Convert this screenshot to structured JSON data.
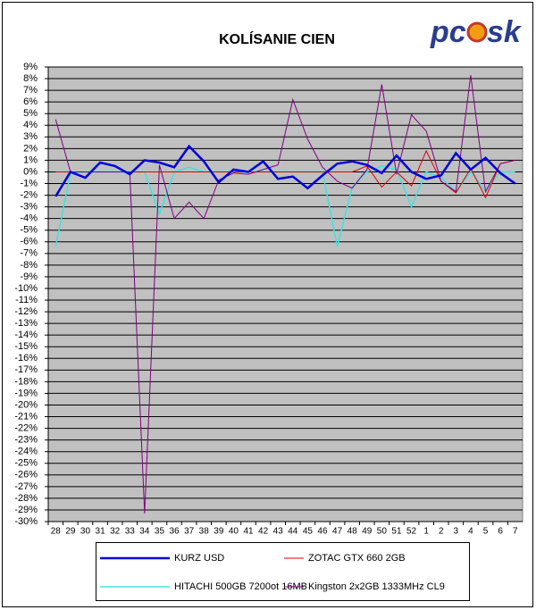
{
  "chart_data": {
    "type": "line",
    "title": "KOLÍSANIE CIEN",
    "logo": [
      "pc",
      "sk"
    ],
    "categories": [
      "28",
      "29",
      "30",
      "31",
      "32",
      "33",
      "34",
      "35",
      "36",
      "37",
      "38",
      "39",
      "40",
      "41",
      "42",
      "43",
      "44",
      "45",
      "46",
      "47",
      "48",
      "49",
      "50",
      "51",
      "52",
      "1",
      "2",
      "3",
      "4",
      "5",
      "6",
      "7"
    ],
    "series": [
      {
        "name": "KURZ USD",
        "color": "#0000dd",
        "values": [
          -2.1,
          0,
          -0.5,
          0.8,
          0.5,
          -0.2,
          1.0,
          0.8,
          0.4,
          2.2,
          0.9,
          -0.9,
          0.2,
          0,
          0.9,
          -0.6,
          -0.4,
          -1.4,
          -0.3,
          0.7,
          0.9,
          0.6,
          -0.1,
          1.4,
          0,
          -0.6,
          -0.3,
          1.6,
          0.2,
          1.2,
          -0.1,
          -1.0
        ]
      },
      {
        "name": "ZOTAC GTX 660 2GB",
        "color": "#e00000",
        "values": [
          0,
          0,
          0,
          0,
          0,
          0,
          0,
          0,
          0,
          0,
          0,
          0,
          0,
          0,
          0,
          0,
          0,
          0,
          0,
          0,
          0,
          0.5,
          -1.3,
          0,
          -1.2,
          1.8,
          -0.8,
          -1.8,
          0.3,
          -2.2,
          0.7,
          1.0
        ]
      },
      {
        "name": "HITACHI 500GB 7200ot 16MB",
        "color": "#40e0e0",
        "values": [
          -6.4,
          -0.1,
          0,
          0,
          0,
          0,
          0,
          -3.6,
          0,
          0.4,
          0,
          0,
          0,
          0,
          0,
          0,
          0,
          0,
          0,
          -6.4,
          -1.3,
          0,
          0.5,
          0.2,
          -3.0,
          0,
          -0.5,
          -1.7,
          0,
          -1.6,
          0,
          0
        ]
      },
      {
        "name": "Kingston 2x2GB 1333MHz CL9",
        "color": "#800080",
        "values": [
          4.5,
          0,
          0,
          0,
          0,
          0,
          -29.3,
          0.6,
          -4.0,
          -2.6,
          -4.0,
          -0.7,
          -0.1,
          -0.2,
          0.2,
          0.6,
          6.2,
          2.8,
          0.4,
          -0.8,
          -1.4,
          0.2,
          7.5,
          -0.2,
          4.9,
          3.5,
          -0.8,
          -1.7,
          8.3,
          -1.7,
          0.7,
          1.0
        ]
      }
    ],
    "ylim": [
      -30,
      9
    ],
    "yticks": [
      {
        "value": 9,
        "label": "9%"
      },
      {
        "value": 8,
        "label": "8%"
      },
      {
        "value": 7,
        "label": "7%"
      },
      {
        "value": 6,
        "label": "6%"
      },
      {
        "value": 5,
        "label": "5%"
      },
      {
        "value": 4,
        "label": "4%"
      },
      {
        "value": 3,
        "label": "3%"
      },
      {
        "value": 2,
        "label": "2%"
      },
      {
        "value": 1,
        "label": "1%"
      },
      {
        "value": 0,
        "label": "0%"
      },
      {
        "value": -1,
        "label": "-1%"
      },
      {
        "value": -2,
        "label": "-2%"
      },
      {
        "value": -3,
        "label": "-3%"
      },
      {
        "value": -4,
        "label": "-4%"
      },
      {
        "value": -5,
        "label": "-5%"
      },
      {
        "value": -6,
        "label": "-6%"
      },
      {
        "value": -7,
        "label": "-7%"
      },
      {
        "value": -8,
        "label": "-8%"
      },
      {
        "value": -9,
        "label": "-9%"
      },
      {
        "value": -10,
        "label": "-10%"
      },
      {
        "value": -11,
        "label": "-11%"
      },
      {
        "value": -12,
        "label": "-12%"
      },
      {
        "value": -13,
        "label": "-13%"
      },
      {
        "value": -14,
        "label": "-14%"
      },
      {
        "value": -15,
        "label": "-15%"
      },
      {
        "value": -16,
        "label": "-16%"
      },
      {
        "value": -17,
        "label": "-17%"
      },
      {
        "value": -18,
        "label": "-18%"
      },
      {
        "value": -19,
        "label": "-19%"
      },
      {
        "value": -20,
        "label": "-20%"
      },
      {
        "value": -21,
        "label": "-21%"
      },
      {
        "value": -22,
        "label": "-22%"
      },
      {
        "value": -23,
        "label": "-23%"
      },
      {
        "value": -24,
        "label": "-24%"
      },
      {
        "value": -25,
        "label": "-25%"
      },
      {
        "value": -26,
        "label": "-26%"
      },
      {
        "value": -27,
        "label": "-27%"
      },
      {
        "value": -28,
        "label": "-28%"
      },
      {
        "value": -29,
        "label": "-29%"
      },
      {
        "value": -30,
        "label": "-30%"
      }
    ],
    "grid": true,
    "legend": "bottom",
    "plot_background": "#c0c0c0"
  }
}
